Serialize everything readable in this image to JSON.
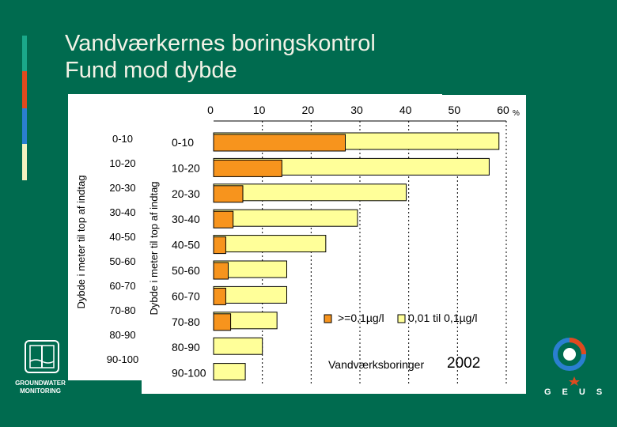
{
  "slide": {
    "title_line1": "Vandværkernes boringskontrol",
    "title_line2": "Fund mod dybde",
    "stripe_colors": [
      "#1aa88a",
      "#e04a1e",
      "#2a7fd0",
      "#f2f2c0"
    ],
    "background": "#006b4f"
  },
  "logos": {
    "left_name": "GROUNDWATER MONITORING",
    "left_line1": "GROUNDWATER",
    "left_line2": "MONITORING",
    "right_name": "GEUS"
  },
  "chart_data": {
    "type": "bar",
    "orientation": "horizontal",
    "stacked": false,
    "categories": [
      "0-10",
      "10-20",
      "20-30",
      "30-40",
      "40-50",
      "50-60",
      "60-70",
      "70-80",
      "80-90",
      "90-100"
    ],
    "series": [
      {
        "name": ">=0,1µg/l",
        "color": "#f7941d",
        "values": [
          27,
          14,
          6,
          4,
          2.5,
          3,
          2.5,
          3.5,
          0,
          0
        ]
      },
      {
        "name": "0,01 til 0,1µg/l",
        "color": "#ffff99",
        "values": [
          58.5,
          56.5,
          39.5,
          29.5,
          23,
          15,
          15,
          13,
          10,
          6.5
        ]
      }
    ],
    "xlim": [
      0,
      60
    ],
    "x_ticks": [
      "0",
      "10",
      "20",
      "30",
      "40",
      "50",
      "60"
    ],
    "x_unit": "%",
    "ylabel": "Dybde i meter til top af indtag",
    "back_ylabel": "Dybde i meter til top af indtag",
    "back_categories": [
      "0-10",
      "10-20",
      "20-30",
      "30-40",
      "40-50",
      "50-60",
      "60-70",
      "70-80",
      "80-90",
      "90-100"
    ],
    "annotation_label": "Vandværksboringer",
    "annotation_year": "2002",
    "legend_position": "bottom-right",
    "grid": "vertical-dashed"
  }
}
